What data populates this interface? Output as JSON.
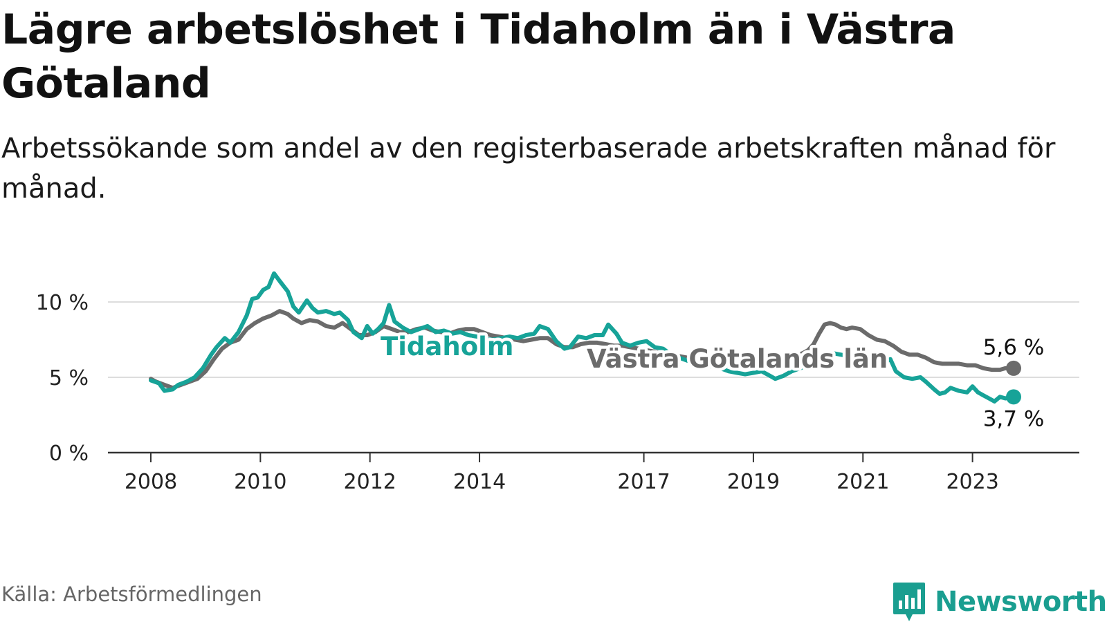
{
  "title": "Lägre arbetslöshet i Tidaholm än i Västra Götaland",
  "subtitle": "Arbetssökande som andel av den registerbaserade arbetskraften månad för månad.",
  "source": "Källa: Arbetsförmedlingen",
  "brand": "Newsworthy",
  "colors": {
    "tidaholm": "#17a398",
    "vastra": "#6b6b6b",
    "grid": "#dddddd",
    "axis": "#333333",
    "brand": "#1a9e90"
  },
  "chart_data": {
    "type": "line",
    "xlabel": "",
    "ylabel": "",
    "x_range": [
      2008.0,
      2023.75
    ],
    "ylim": [
      0,
      12
    ],
    "grid": true,
    "y_ticks": [
      {
        "value": 0,
        "label": "0 %"
      },
      {
        "value": 5,
        "label": "5 %"
      },
      {
        "value": 10,
        "label": "10 %"
      }
    ],
    "x_ticks": [
      {
        "value": 2008,
        "label": "2008"
      },
      {
        "value": 2010,
        "label": "2010"
      },
      {
        "value": 2012,
        "label": "2012"
      },
      {
        "value": 2014,
        "label": "2014"
      },
      {
        "value": 2017,
        "label": "2017"
      },
      {
        "value": 2019,
        "label": "2019"
      },
      {
        "value": 2021,
        "label": "2021"
      },
      {
        "value": 2023,
        "label": "2023"
      }
    ],
    "series": [
      {
        "name": "Västra Götalands län",
        "label": "Västra Götalands län",
        "end_label": "5,6 %",
        "color": "#6b6b6b",
        "points": [
          [
            2008.0,
            4.9
          ],
          [
            2008.1,
            4.7
          ],
          [
            2008.25,
            4.5
          ],
          [
            2008.4,
            4.3
          ],
          [
            2008.55,
            4.5
          ],
          [
            2008.7,
            4.7
          ],
          [
            2008.85,
            4.9
          ],
          [
            2009.0,
            5.4
          ],
          [
            2009.15,
            6.2
          ],
          [
            2009.3,
            6.9
          ],
          [
            2009.45,
            7.3
          ],
          [
            2009.6,
            7.5
          ],
          [
            2009.75,
            8.2
          ],
          [
            2009.9,
            8.6
          ],
          [
            2010.05,
            8.9
          ],
          [
            2010.2,
            9.1
          ],
          [
            2010.35,
            9.4
          ],
          [
            2010.5,
            9.2
          ],
          [
            2010.6,
            8.9
          ],
          [
            2010.75,
            8.6
          ],
          [
            2010.9,
            8.8
          ],
          [
            2011.05,
            8.7
          ],
          [
            2011.2,
            8.4
          ],
          [
            2011.35,
            8.3
          ],
          [
            2011.5,
            8.6
          ],
          [
            2011.65,
            8.2
          ],
          [
            2011.8,
            7.8
          ],
          [
            2011.95,
            7.8
          ],
          [
            2012.1,
            8.0
          ],
          [
            2012.25,
            8.4
          ],
          [
            2012.4,
            8.2
          ],
          [
            2012.55,
            8.0
          ],
          [
            2012.7,
            8.0
          ],
          [
            2012.85,
            8.2
          ],
          [
            2013.0,
            8.3
          ],
          [
            2013.15,
            8.1
          ],
          [
            2013.3,
            8.0
          ],
          [
            2013.45,
            7.9
          ],
          [
            2013.6,
            8.1
          ],
          [
            2013.75,
            8.2
          ],
          [
            2013.9,
            8.2
          ],
          [
            2014.05,
            8.0
          ],
          [
            2014.2,
            7.8
          ],
          [
            2014.35,
            7.7
          ],
          [
            2014.5,
            7.6
          ],
          [
            2014.65,
            7.5
          ],
          [
            2014.8,
            7.4
          ],
          [
            2014.95,
            7.5
          ],
          [
            2015.1,
            7.6
          ],
          [
            2015.25,
            7.6
          ],
          [
            2015.4,
            7.2
          ],
          [
            2015.55,
            7.0
          ],
          [
            2015.7,
            7.0
          ],
          [
            2015.85,
            7.2
          ],
          [
            2016.0,
            7.3
          ],
          [
            2016.15,
            7.3
          ],
          [
            2016.3,
            7.2
          ],
          [
            2016.45,
            7.1
          ],
          [
            2016.6,
            7.1
          ],
          [
            2016.75,
            7.0
          ],
          [
            2016.9,
            6.9
          ],
          [
            2017.05,
            6.8
          ],
          [
            2017.2,
            6.7
          ],
          [
            2017.35,
            6.6
          ],
          [
            2017.5,
            6.5
          ],
          [
            2017.65,
            6.4
          ],
          [
            2017.8,
            6.3
          ],
          [
            2017.95,
            6.2
          ],
          [
            2018.1,
            6.1
          ],
          [
            2018.25,
            6.0
          ],
          [
            2018.4,
            5.9
          ],
          [
            2018.55,
            5.8
          ],
          [
            2018.7,
            5.8
          ],
          [
            2018.85,
            5.8
          ],
          [
            2019.0,
            5.9
          ],
          [
            2019.15,
            6.0
          ],
          [
            2019.3,
            6.1
          ],
          [
            2019.45,
            6.2
          ],
          [
            2019.6,
            6.3
          ],
          [
            2019.75,
            6.4
          ],
          [
            2019.9,
            6.6
          ],
          [
            2020.0,
            6.8
          ],
          [
            2020.1,
            7.2
          ],
          [
            2020.2,
            7.9
          ],
          [
            2020.3,
            8.5
          ],
          [
            2020.4,
            8.6
          ],
          [
            2020.5,
            8.5
          ],
          [
            2020.6,
            8.3
          ],
          [
            2020.7,
            8.2
          ],
          [
            2020.8,
            8.3
          ],
          [
            2020.95,
            8.2
          ],
          [
            2021.1,
            7.8
          ],
          [
            2021.25,
            7.5
          ],
          [
            2021.4,
            7.4
          ],
          [
            2021.55,
            7.1
          ],
          [
            2021.7,
            6.7
          ],
          [
            2021.85,
            6.5
          ],
          [
            2022.0,
            6.5
          ],
          [
            2022.15,
            6.3
          ],
          [
            2022.3,
            6.0
          ],
          [
            2022.45,
            5.9
          ],
          [
            2022.6,
            5.9
          ],
          [
            2022.75,
            5.9
          ],
          [
            2022.9,
            5.8
          ],
          [
            2023.05,
            5.8
          ],
          [
            2023.2,
            5.6
          ],
          [
            2023.35,
            5.5
          ],
          [
            2023.5,
            5.5
          ],
          [
            2023.6,
            5.6
          ],
          [
            2023.75,
            5.6
          ]
        ]
      },
      {
        "name": "Tidaholm",
        "label": "Tidaholm",
        "end_label": "3,7 %",
        "color": "#17a398",
        "points": [
          [
            2008.0,
            4.8
          ],
          [
            2008.15,
            4.6
          ],
          [
            2008.25,
            4.1
          ],
          [
            2008.4,
            4.2
          ],
          [
            2008.5,
            4.5
          ],
          [
            2008.65,
            4.7
          ],
          [
            2008.8,
            5.0
          ],
          [
            2008.95,
            5.6
          ],
          [
            2009.1,
            6.5
          ],
          [
            2009.2,
            7.0
          ],
          [
            2009.35,
            7.6
          ],
          [
            2009.45,
            7.3
          ],
          [
            2009.6,
            8.0
          ],
          [
            2009.75,
            9.1
          ],
          [
            2009.85,
            10.2
          ],
          [
            2009.95,
            10.3
          ],
          [
            2010.05,
            10.8
          ],
          [
            2010.15,
            11.0
          ],
          [
            2010.25,
            11.9
          ],
          [
            2010.35,
            11.4
          ],
          [
            2010.5,
            10.7
          ],
          [
            2010.6,
            9.7
          ],
          [
            2010.7,
            9.3
          ],
          [
            2010.85,
            10.1
          ],
          [
            2010.95,
            9.6
          ],
          [
            2011.05,
            9.3
          ],
          [
            2011.2,
            9.4
          ],
          [
            2011.35,
            9.2
          ],
          [
            2011.45,
            9.3
          ],
          [
            2011.6,
            8.8
          ],
          [
            2011.7,
            8.0
          ],
          [
            2011.85,
            7.6
          ],
          [
            2011.95,
            8.4
          ],
          [
            2012.05,
            7.9
          ],
          [
            2012.15,
            8.2
          ],
          [
            2012.25,
            8.6
          ],
          [
            2012.35,
            9.8
          ],
          [
            2012.45,
            8.7
          ],
          [
            2012.6,
            8.3
          ],
          [
            2012.75,
            8.0
          ],
          [
            2012.9,
            8.2
          ],
          [
            2013.05,
            8.4
          ],
          [
            2013.2,
            8.0
          ],
          [
            2013.35,
            8.1
          ],
          [
            2013.5,
            7.9
          ],
          [
            2013.65,
            8.0
          ],
          [
            2013.8,
            7.8
          ],
          [
            2013.95,
            7.7
          ],
          [
            2014.1,
            7.5
          ],
          [
            2014.25,
            7.5
          ],
          [
            2014.4,
            7.6
          ],
          [
            2014.55,
            7.7
          ],
          [
            2014.7,
            7.6
          ],
          [
            2014.85,
            7.8
          ],
          [
            2015.0,
            7.9
          ],
          [
            2015.1,
            8.4
          ],
          [
            2015.25,
            8.2
          ],
          [
            2015.4,
            7.4
          ],
          [
            2015.55,
            6.9
          ],
          [
            2015.65,
            7.0
          ],
          [
            2015.8,
            7.7
          ],
          [
            2015.95,
            7.6
          ],
          [
            2016.1,
            7.8
          ],
          [
            2016.25,
            7.8
          ],
          [
            2016.35,
            8.5
          ],
          [
            2016.5,
            7.9
          ],
          [
            2016.6,
            7.3
          ],
          [
            2016.75,
            7.1
          ],
          [
            2016.9,
            7.3
          ],
          [
            2017.05,
            7.4
          ],
          [
            2017.2,
            7.0
          ],
          [
            2017.35,
            6.9
          ],
          [
            2017.5,
            6.5
          ],
          [
            2017.65,
            6.3
          ],
          [
            2017.8,
            6.1
          ],
          [
            2017.95,
            6.0
          ],
          [
            2018.1,
            5.9
          ],
          [
            2018.25,
            5.7
          ],
          [
            2018.4,
            5.6
          ],
          [
            2018.55,
            5.4
          ],
          [
            2018.7,
            5.3
          ],
          [
            2018.85,
            5.2
          ],
          [
            2019.0,
            5.3
          ],
          [
            2019.15,
            5.4
          ],
          [
            2019.3,
            5.1
          ],
          [
            2019.4,
            4.9
          ],
          [
            2019.55,
            5.1
          ],
          [
            2019.7,
            5.4
          ],
          [
            2019.85,
            5.6
          ],
          [
            2020.0,
            5.8
          ],
          [
            2020.15,
            6.2
          ],
          [
            2020.3,
            6.5
          ],
          [
            2020.45,
            6.6
          ],
          [
            2020.6,
            6.5
          ],
          [
            2020.75,
            6.4
          ],
          [
            2020.9,
            6.2
          ],
          [
            2021.05,
            6.0
          ],
          [
            2021.2,
            5.8
          ],
          [
            2021.35,
            5.9
          ],
          [
            2021.5,
            6.2
          ],
          [
            2021.6,
            5.4
          ],
          [
            2021.75,
            5.0
          ],
          [
            2021.9,
            4.9
          ],
          [
            2022.05,
            5.0
          ],
          [
            2022.15,
            4.7
          ],
          [
            2022.3,
            4.2
          ],
          [
            2022.4,
            3.9
          ],
          [
            2022.5,
            4.0
          ],
          [
            2022.6,
            4.3
          ],
          [
            2022.75,
            4.1
          ],
          [
            2022.9,
            4.0
          ],
          [
            2023.0,
            4.4
          ],
          [
            2023.1,
            4.0
          ],
          [
            2023.2,
            3.8
          ],
          [
            2023.3,
            3.6
          ],
          [
            2023.4,
            3.4
          ],
          [
            2023.5,
            3.7
          ],
          [
            2023.6,
            3.6
          ],
          [
            2023.75,
            3.7
          ]
        ]
      }
    ]
  }
}
